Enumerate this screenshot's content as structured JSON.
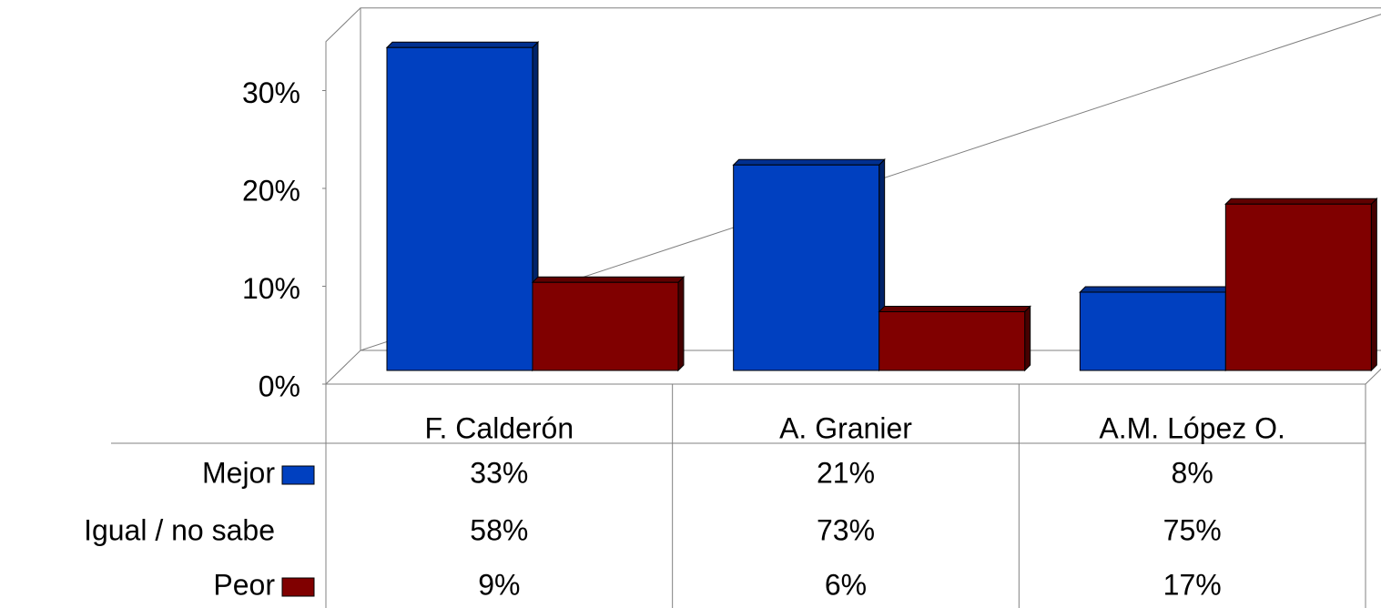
{
  "chart_data": {
    "type": "bar",
    "categories": [
      "F. Calderón",
      "A. Granier",
      "A.M. López O."
    ],
    "series": [
      {
        "name": "Mejor",
        "color": "#0040c0",
        "values": [
          33,
          21,
          8
        ],
        "value_labels": [
          "33%",
          "21%",
          "8%"
        ]
      },
      {
        "name": "Igual / no sabe",
        "values": [
          58,
          73,
          75
        ],
        "value_labels": [
          "58%",
          "73%",
          "75%"
        ]
      },
      {
        "name": "Peor",
        "color": "#800000",
        "values": [
          9,
          6,
          17
        ],
        "value_labels": [
          "9%",
          "6%",
          "17%"
        ]
      }
    ],
    "ylim": [
      0,
      35
    ],
    "yticks": [
      {
        "value": 0,
        "label": "0%"
      },
      {
        "value": 10,
        "label": "10%"
      },
      {
        "value": 20,
        "label": "20%"
      },
      {
        "value": 30,
        "label": "30%"
      }
    ],
    "data_table": true
  }
}
